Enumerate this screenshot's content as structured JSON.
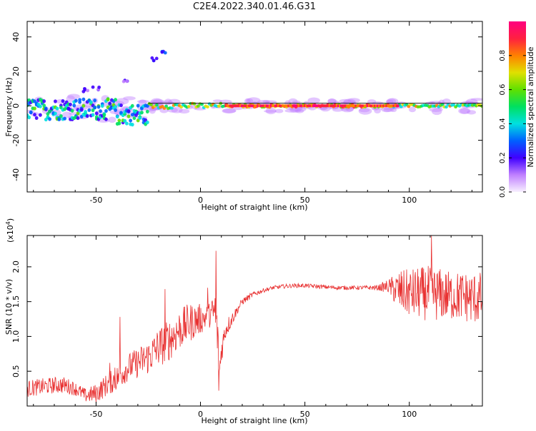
{
  "figure": {
    "title": "C2E4.2022.340.01.46.G31"
  },
  "chart_data": [
    {
      "type": "heatmap",
      "panel": "spectrogram",
      "xlabel": "Height of straight line (km)",
      "ylabel": "Frequency (Hz)",
      "xlim": [
        -83,
        135
      ],
      "ylim": [
        -50,
        49
      ],
      "xticks": [
        -50,
        0,
        50,
        100
      ],
      "yticks": [
        -40,
        -20,
        0,
        20,
        40
      ],
      "colorbar": {
        "label": "Normalized spectral amplitude",
        "range": [
          0,
          1
        ],
        "ticks": [
          "0.0",
          "0.2",
          "0.4",
          "0.6",
          "0.8"
        ],
        "tick_values": [
          0.0,
          0.2,
          0.4,
          0.6,
          0.8
        ],
        "colormap": [
          "#f8f0ff",
          "#c080ff",
          "#4000ff",
          "#0060ff",
          "#00e0e0",
          "#00e060",
          "#60e000",
          "#e0e000",
          "#ff8000",
          "#ff2040",
          "#ff0080"
        ]
      },
      "features": {
        "main_band": {
          "x_range": [
            -83,
            135
          ],
          "center_hz": 0,
          "half_width_hz": 2
        },
        "low_height_spread": {
          "x_range": [
            -83,
            -25
          ],
          "freq_range_hz": [
            -10,
            5
          ]
        },
        "harmonic_trace": [
          {
            "x": -55,
            "y": 9
          },
          {
            "x": -50,
            "y": 10
          },
          {
            "x": -36,
            "y": 15
          },
          {
            "x": -22,
            "y": 27
          },
          {
            "x": -17,
            "y": 31
          }
        ],
        "reference_line_hz": 1.5
      }
    },
    {
      "type": "line",
      "panel": "snr",
      "xlabel": "Height of straight line (km)",
      "ylabel": "SNR (10 * v/v)",
      "multiplier": "(x10",
      "multiplier_exp": "4",
      "multiplier_close": ")",
      "xlim": [
        -83,
        135
      ],
      "ylim": [
        0,
        2.45
      ],
      "xticks": [
        -50,
        0,
        50,
        100
      ],
      "yticks": [
        "0.5",
        "1.0",
        "1.5",
        "2.0"
      ],
      "ytick_values": [
        0.5,
        1.0,
        1.5,
        2.0
      ],
      "color": "#e83030",
      "series": [
        {
          "x": [
            -83,
            -75,
            -70,
            -65,
            -60,
            -55,
            -50,
            -45,
            -40,
            -35,
            -30,
            -25,
            -20,
            -17,
            -15,
            -10,
            -5,
            0,
            3,
            5,
            7,
            8,
            9,
            10,
            12,
            15,
            18,
            20,
            25,
            30,
            35,
            40,
            45,
            50,
            55,
            60,
            65,
            70,
            75,
            80,
            85,
            90,
            95,
            100,
            105,
            110,
            115,
            120,
            125,
            130,
            135
          ],
          "mean": [
            0.25,
            0.28,
            0.3,
            0.3,
            0.25,
            0.15,
            0.18,
            0.3,
            0.4,
            0.55,
            0.62,
            0.7,
            0.85,
            0.9,
            0.95,
            1.1,
            1.2,
            1.25,
            1.28,
            1.32,
            1.35,
            1.1,
            0.45,
            0.8,
            1.1,
            1.25,
            1.4,
            1.5,
            1.6,
            1.66,
            1.7,
            1.72,
            1.73,
            1.73,
            1.72,
            1.71,
            1.7,
            1.7,
            1.7,
            1.7,
            1.7,
            1.72,
            1.65,
            1.62,
            1.62,
            1.62,
            1.6,
            1.58,
            1.58,
            1.55,
            1.55
          ],
          "noise": [
            0.12,
            0.12,
            0.12,
            0.12,
            0.1,
            0.1,
            0.14,
            0.16,
            0.18,
            0.2,
            0.22,
            0.25,
            0.28,
            0.3,
            0.3,
            0.3,
            0.28,
            0.22,
            0.18,
            0.18,
            0.35,
            0.4,
            0.25,
            0.2,
            0.15,
            0.1,
            0.06,
            0.05,
            0.04,
            0.03,
            0.03,
            0.03,
            0.03,
            0.03,
            0.03,
            0.03,
            0.03,
            0.03,
            0.03,
            0.03,
            0.04,
            0.1,
            0.3,
            0.35,
            0.38,
            0.4,
            0.38,
            0.36,
            0.36,
            0.38,
            0.38
          ],
          "peaks": [
            {
              "x": -43.5,
              "y": 0.62
            },
            {
              "x": -41,
              "y": 0.55
            },
            {
              "x": -38.5,
              "y": 1.28
            },
            {
              "x": -17,
              "y": 1.68
            },
            {
              "x": 3.5,
              "y": 1.7
            },
            {
              "x": 7.5,
              "y": 2.23
            },
            {
              "x": 8.8,
              "y": 0.22
            },
            {
              "x": 110.5,
              "y": 2.45
            }
          ]
        }
      ]
    }
  ]
}
